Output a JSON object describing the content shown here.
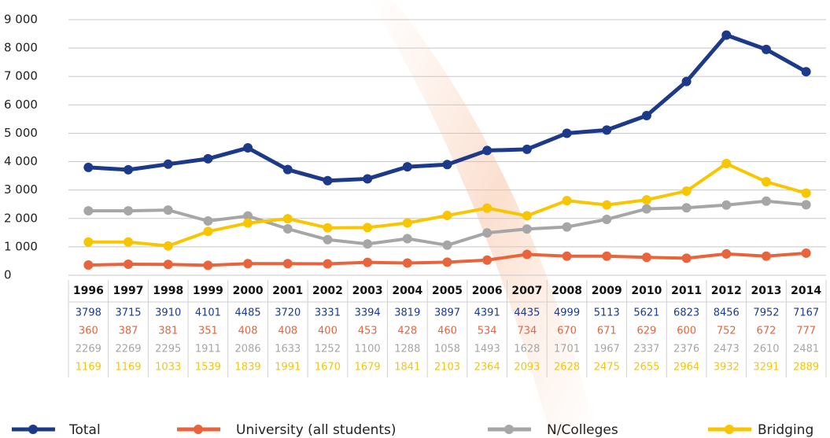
{
  "chart_data": {
    "type": "line",
    "categories": [
      "1996",
      "1997",
      "1998",
      "1999",
      "2000",
      "2001",
      "2002",
      "2003",
      "2004",
      "2005",
      "2006",
      "2007",
      "2008",
      "2009",
      "2010",
      "2011",
      "2012",
      "2013",
      "2014"
    ],
    "series": [
      {
        "name": "Total",
        "color": "#1d3a8a",
        "values": [
          3798,
          3715,
          3910,
          4101,
          4485,
          3720,
          3331,
          3394,
          3819,
          3897,
          4391,
          4435,
          4999,
          5113,
          5621,
          6823,
          8456,
          7952,
          7167
        ]
      },
      {
        "name": "University (all students)",
        "color": "#e8643c",
        "values": [
          360,
          387,
          381,
          351,
          408,
          408,
          400,
          453,
          428,
          460,
          534,
          734,
          670,
          671,
          629,
          600,
          752,
          672,
          777
        ]
      },
      {
        "name": "N/Colleges",
        "color": "#a6a6a6",
        "values": [
          2269,
          2269,
          2295,
          1911,
          2086,
          1633,
          1252,
          1100,
          1288,
          1058,
          1493,
          1628,
          1701,
          1967,
          2337,
          2376,
          2473,
          2610,
          2481
        ]
      },
      {
        "name": "Bridging",
        "color": "#f7c600",
        "values": [
          1169,
          1169,
          1033,
          1539,
          1839,
          1991,
          1670,
          1679,
          1841,
          2103,
          2364,
          2093,
          2628,
          2475,
          2655,
          2964,
          3932,
          3291,
          2889
        ]
      }
    ],
    "ylim": [
      0,
      9000
    ],
    "yticks": [
      0,
      {
        "value": 1000,
        "label": "1 000"
      },
      {
        "value": 2000,
        "label": "2 000"
      },
      {
        "value": 3000,
        "label": "3 000"
      },
      {
        "value": 4000,
        "label": "4 000"
      },
      {
        "value": 5000,
        "label": "5 000"
      },
      {
        "value": 6000,
        "label": "6 000"
      },
      {
        "value": 7000,
        "label": "7 000"
      },
      {
        "value": 8000,
        "label": "8 000"
      },
      {
        "value": 9000,
        "label": "9 000"
      }
    ],
    "grid": true
  }
}
